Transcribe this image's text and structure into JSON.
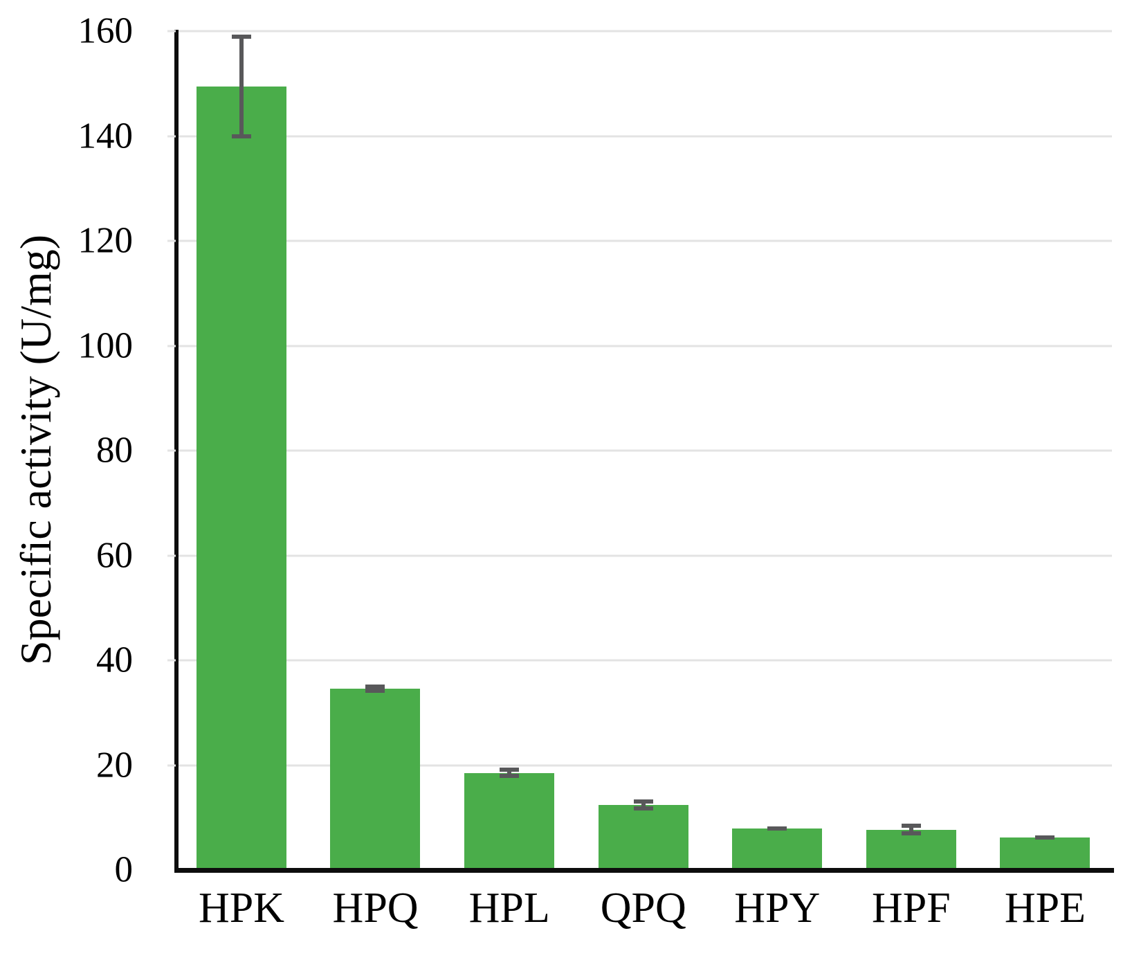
{
  "figure": {
    "background": "#ffffff"
  },
  "chart_data": {
    "type": "bar",
    "title": "",
    "ylabel": "Specific activity (U/mg)",
    "xlabel": "",
    "categories": [
      "HPK",
      "HPQ",
      "HPL",
      "QPQ",
      "HPY",
      "HPF",
      "HPE"
    ],
    "values": [
      149.5,
      34.6,
      18.5,
      12.4,
      7.9,
      7.7,
      6.2
    ],
    "errors": [
      9.9,
      0.8,
      1.0,
      1.0,
      0.4,
      1.1,
      0.4
    ],
    "yticks": [
      0,
      20,
      40,
      60,
      80,
      100,
      120,
      140,
      160
    ],
    "ylim": [
      0,
      160
    ],
    "grid": true,
    "legend_position": "none",
    "bar_color": "#4aad4a",
    "error_bar_color": "#58585a",
    "gridline_color": "#e3e3e3",
    "axis_color": "#0d0d0d",
    "text_color": "#000000"
  }
}
